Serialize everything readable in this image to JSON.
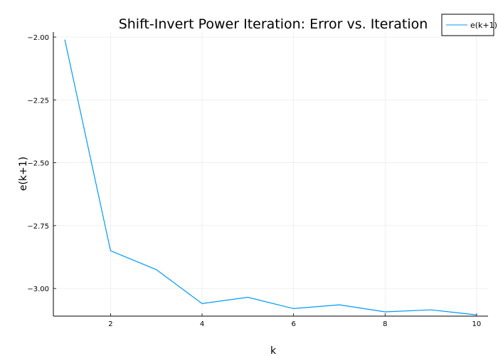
{
  "chart_data": {
    "type": "line",
    "title": "Shift-Invert Power Iteration: Error vs. Iteration",
    "xlabel": "k",
    "ylabel": "e(k+1)",
    "xlim": [
      0.75,
      10.25
    ],
    "ylim": [
      -3.11,
      -1.98
    ],
    "xticks": [
      2,
      4,
      6,
      8,
      10
    ],
    "xtick_labels": [
      "2",
      "4",
      "6",
      "8",
      "10"
    ],
    "yticks": [
      -2.0,
      -2.25,
      -2.5,
      -2.75,
      -3.0
    ],
    "ytick_labels": [
      "−2.00",
      "−2.25",
      "−2.50",
      "−2.75",
      "−3.00"
    ],
    "grid": true,
    "legend_position": "top-right",
    "series": [
      {
        "name": "e(k+1)",
        "color": "#009AFA",
        "x": [
          1,
          2,
          3,
          4,
          5,
          6,
          7,
          8,
          9,
          10
        ],
        "y": [
          -2.01,
          -2.85,
          -2.925,
          -3.06,
          -3.035,
          -3.08,
          -3.065,
          -3.093,
          -3.085,
          -3.105
        ]
      }
    ]
  }
}
